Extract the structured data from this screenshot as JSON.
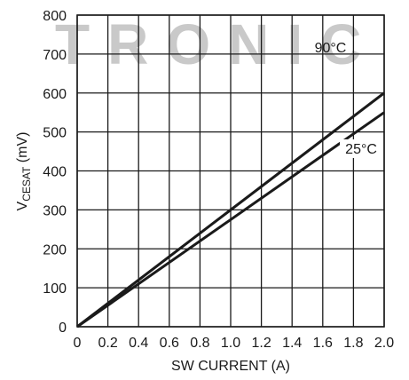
{
  "watermark": "TRONIC",
  "chart_data": {
    "type": "line",
    "title": "",
    "xlabel": "SW CURRENT (A)",
    "ylabel": {
      "main": "V",
      "sub": "CESAT",
      "unit": " (mV)"
    },
    "xlim": [
      0,
      2.0
    ],
    "ylim": [
      0,
      800
    ],
    "grid": true,
    "x_ticks": [
      "0",
      "0.2",
      "0.4",
      "0.6",
      "0.8",
      "1.0",
      "1.2",
      "1.4",
      "1.6",
      "1.8",
      "2.0"
    ],
    "y_ticks": [
      "0",
      "100",
      "200",
      "300",
      "400",
      "500",
      "600",
      "700",
      "800"
    ],
    "series": [
      {
        "name": "90°C",
        "x": [
          0,
          2.0
        ],
        "y": [
          0,
          600
        ]
      },
      {
        "name": "25°C",
        "x": [
          0,
          2.0
        ],
        "y": [
          0,
          550
        ]
      }
    ],
    "line_color": "#1a1a1a"
  }
}
